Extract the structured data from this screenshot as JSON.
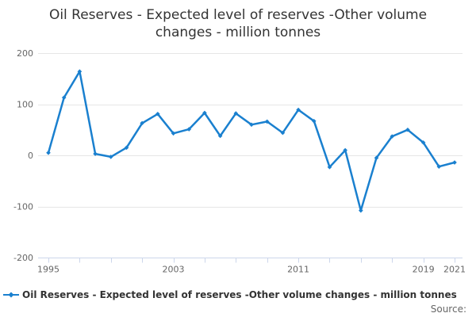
{
  "title": "Oil Reserves - Expected level of reserves -Other volume changes - million tonnes",
  "legend": {
    "items": [
      {
        "label": "Oil Reserves - Expected level of reserves -Other volume changes - million tonnes",
        "marker": "line-with-diamond",
        "color": "#1a80cf"
      }
    ]
  },
  "footer": {
    "source_label": "Source:"
  },
  "chart_data": {
    "type": "line",
    "title": "Oil Reserves - Expected level of reserves -Other volume changes - million tonnes",
    "xlabel": "",
    "ylabel": "",
    "xlim": [
      1995,
      2021
    ],
    "ylim": [
      -200,
      200
    ],
    "y_ticks": [
      -200,
      -100,
      0,
      100,
      200
    ],
    "x_tick_step": 2,
    "x_label_years": [
      1995,
      2003,
      2011,
      2019,
      2021
    ],
    "grid": "horizontal",
    "legend_position": "bottom-left",
    "colors": {
      "line": "#1a80cf",
      "grid": "#e6e6e6",
      "axis": "#ccd6eb",
      "tick_label": "#666666"
    },
    "series": [
      {
        "name": "Oil Reserves - Expected level of reserves -Other volume changes - million tonnes",
        "x": [
          1995,
          1996,
          1997,
          1998,
          1999,
          2000,
          2001,
          2002,
          2003,
          2004,
          2005,
          2006,
          2007,
          2008,
          2009,
          2010,
          2011,
          2012,
          2013,
          2014,
          2015,
          2016,
          2017,
          2018,
          2019,
          2020,
          2021
        ],
        "values": [
          5,
          113,
          164,
          3,
          -3,
          15,
          63,
          81,
          43,
          51,
          83,
          38,
          82,
          60,
          66,
          44,
          89,
          67,
          -23,
          10,
          -108,
          -5,
          37,
          50,
          25,
          -22,
          -14
        ]
      }
    ]
  }
}
